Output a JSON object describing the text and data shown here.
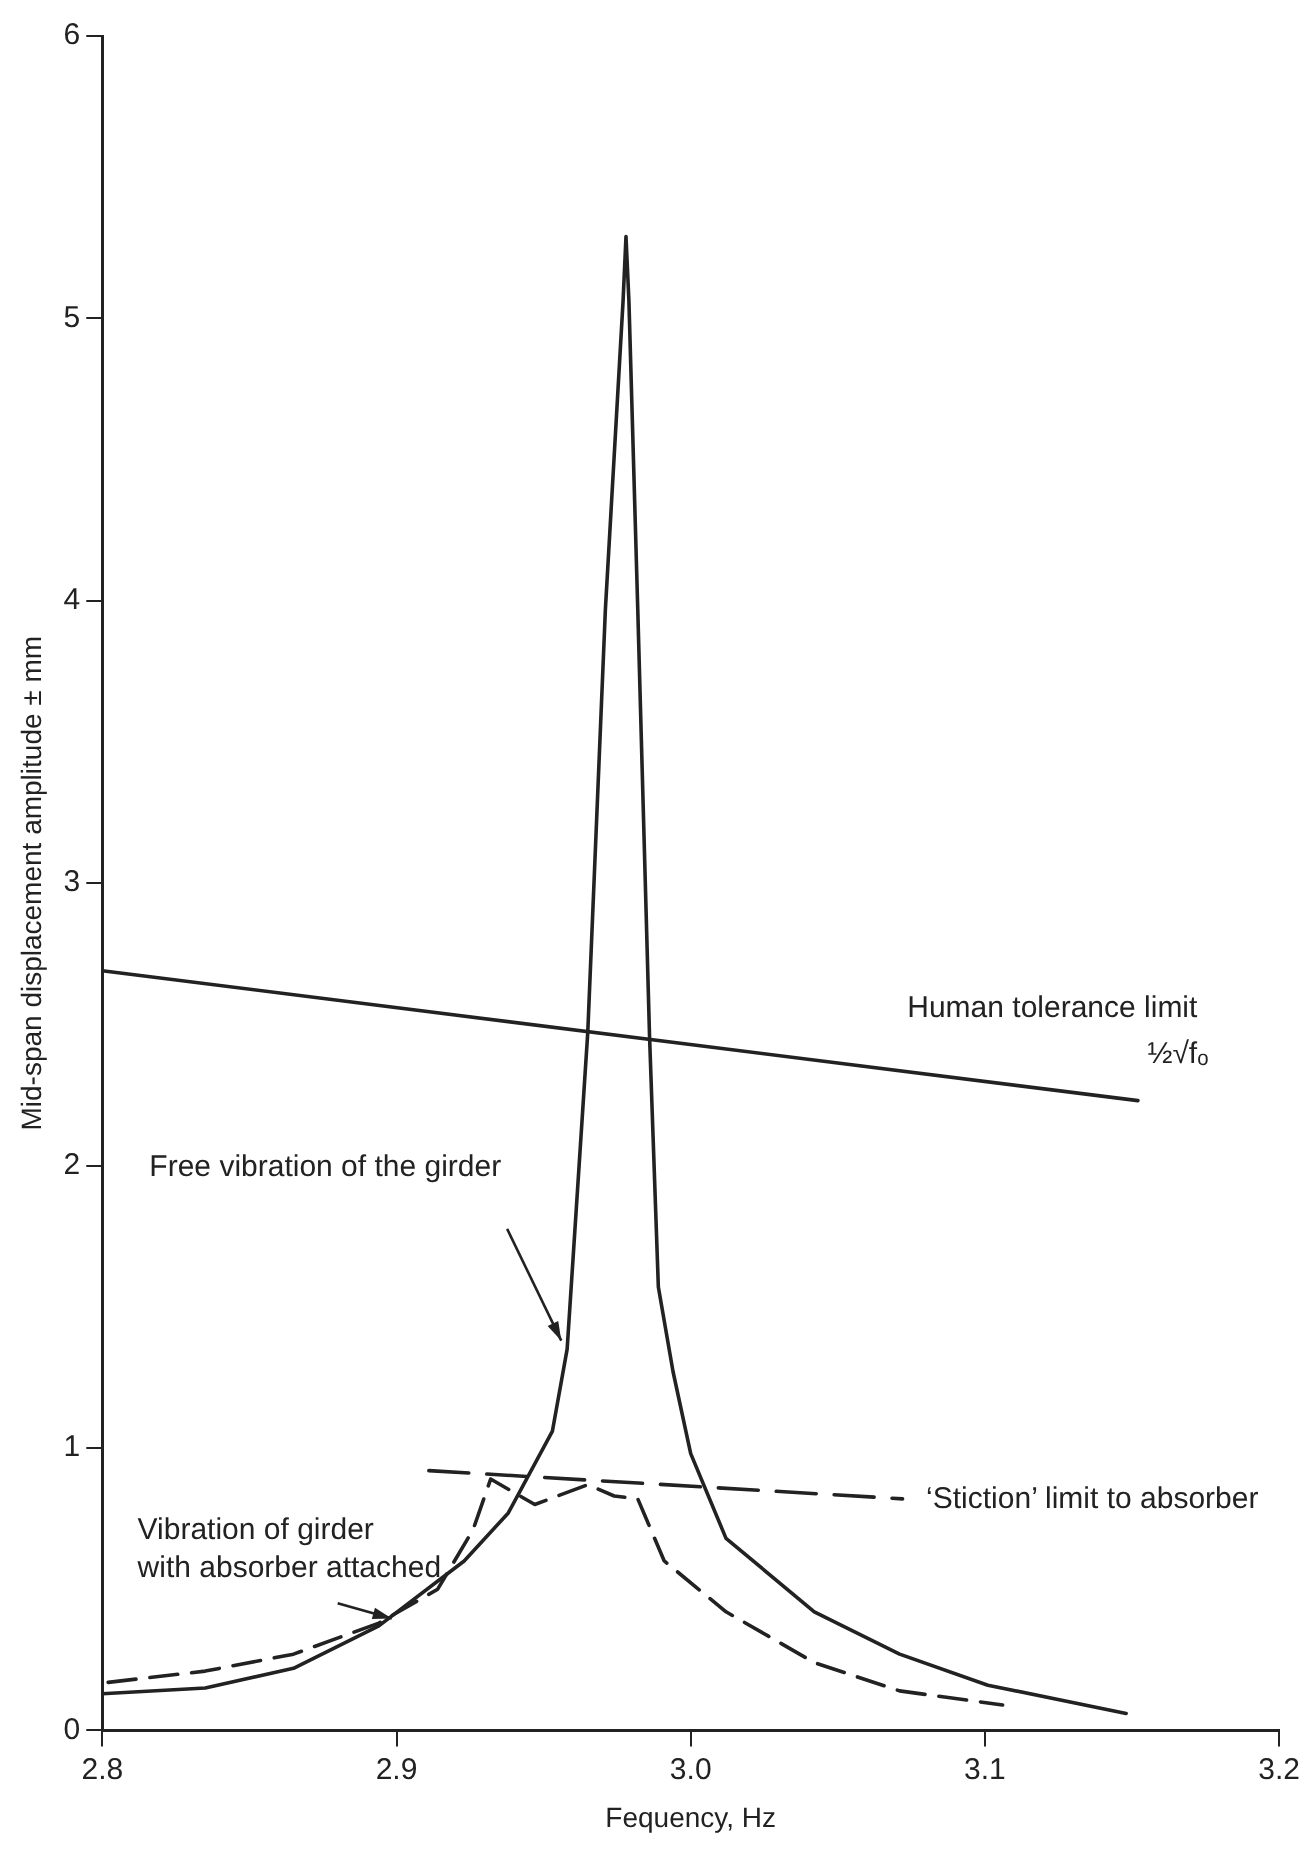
{
  "chart_data": {
    "type": "line",
    "xlabel": "Fequency, Hz",
    "ylabel": "Mid-span displacement amplitude ± mm",
    "xlim": [
      2.8,
      3.2
    ],
    "xticks": [
      2.8,
      2.9,
      {
        "value": 3.0,
        "label": "3.0"
      },
      3.1,
      3.2
    ],
    "ylim": [
      0,
      6
    ],
    "yticks": [
      0,
      1,
      2,
      3,
      4,
      5,
      6
    ],
    "grid": false,
    "legend": false,
    "marker": "none",
    "annotations": [
      "½√fₒ"
    ],
    "series": [
      {
        "name": "Free vibration of the girder",
        "color": "#222222",
        "line_style": "solid",
        "x": [
          2.8,
          2.835,
          2.865,
          2.894,
          2.923,
          2.938,
          2.953,
          2.958,
          2.965,
          2.971,
          2.977,
          2.978,
          2.979,
          2.982,
          2.986,
          2.989,
          2.994,
          3.0,
          3.012,
          3.042,
          3.071,
          3.101,
          3.148
        ],
        "values": [
          0.13,
          0.15,
          0.22,
          0.37,
          0.6,
          0.77,
          1.06,
          1.35,
          2.47,
          3.97,
          5.06,
          5.29,
          5.06,
          3.97,
          2.46,
          1.57,
          1.27,
          0.98,
          0.68,
          0.42,
          0.27,
          0.16,
          0.06
        ]
      },
      {
        "name": "Vibration of girder with absorber attached",
        "color": "#222222",
        "line_style": "dashed",
        "x": [
          2.802,
          2.835,
          2.865,
          2.894,
          2.914,
          2.926,
          2.932,
          2.947,
          2.965,
          2.974,
          2.982,
          2.991,
          3.012,
          3.042,
          3.071,
          3.106
        ],
        "values": [
          0.17,
          0.21,
          0.27,
          0.38,
          0.5,
          0.71,
          0.89,
          0.8,
          0.87,
          0.83,
          0.82,
          0.6,
          0.42,
          0.24,
          0.14,
          0.09
        ]
      },
      {
        "name": "Human tolerance limit",
        "color": "#222222",
        "line_style": "solid",
        "x": [
          2.8,
          3.152
        ],
        "values": [
          2.69,
          2.23
        ]
      },
      {
        "name": "‘Stiction’ limit to absorber",
        "color": "#222222",
        "line_style": "dashed",
        "x": [
          2.911,
          3.072
        ],
        "values": [
          0.92,
          0.82
        ]
      }
    ]
  }
}
